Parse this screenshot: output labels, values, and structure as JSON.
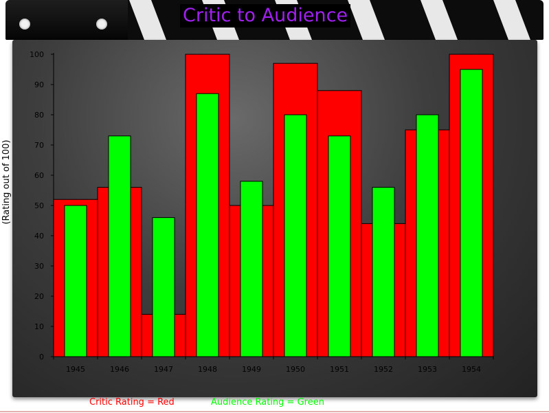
{
  "chart_data": {
    "type": "bar",
    "title": "Critic to Audience",
    "ylabel": "(Rating out of 100)",
    "xlabel": "",
    "ylim": [
      0,
      100
    ],
    "yticks": [
      0,
      10,
      20,
      30,
      40,
      50,
      60,
      70,
      80,
      90,
      100
    ],
    "categories": [
      "1945",
      "1946",
      "1947",
      "1948",
      "1949",
      "1950",
      "1951",
      "1952",
      "1953",
      "1954"
    ],
    "series": [
      {
        "name": "Critic Rating",
        "color": "#ff0000",
        "values": [
          52,
          56,
          14,
          100,
          50,
          97,
          88,
          44,
          75,
          100
        ]
      },
      {
        "name": "Audience Rating",
        "color": "#00ff00",
        "values": [
          50,
          73,
          46,
          87,
          58,
          80,
          73,
          56,
          80,
          95
        ]
      }
    ],
    "grid": false,
    "legend": {
      "placement": "bottom",
      "critic_text": "Critic Rating = Red",
      "audience_text": "Audience Rating = Green"
    }
  },
  "colors": {
    "critic": "#ff0000",
    "audience": "#00ff00",
    "title": "#a020f0"
  }
}
